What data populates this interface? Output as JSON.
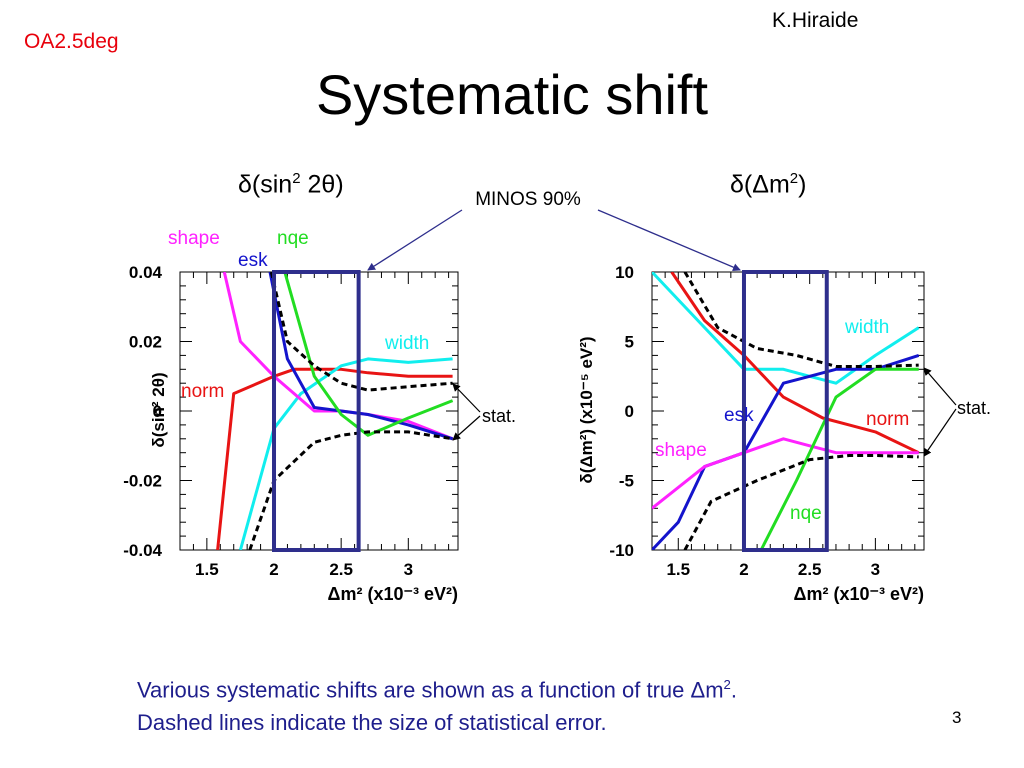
{
  "slide": {
    "tag": "OA2.5deg",
    "author": "K.Hiraide",
    "title": "Systematic shift",
    "left_heading": {
      "delta": "δ",
      "open": "(sin",
      "sup": "2",
      "close": " 2θ)"
    },
    "right_heading": {
      "delta": "δ",
      "open": "(Δm",
      "sup": "2",
      "close": ")"
    },
    "minos_label": "MINOS 90%",
    "caption_line1": "Various systematic shifts are shown as a function of true Δm",
    "caption_sup": "2",
    "caption_line1_end": ".",
    "caption_line2": "Dashed lines indicate the size of statistical error.",
    "page_number": "3"
  },
  "colors": {
    "shape": "#ff22ff",
    "nqe": "#22dd22",
    "esk": "#1414cc",
    "width": "#11eeee",
    "norm": "#e81414",
    "stat": "#000000",
    "box": "#2e2e8c",
    "caption": "#1e1e8c",
    "tag": "#e8000b"
  },
  "chart_data": [
    {
      "type": "line",
      "id": "left",
      "ylabel": "δ(sin² 2θ)",
      "xlabel": "Δm² (x10⁻³ eV²)",
      "xlim": [
        1.3,
        3.37
      ],
      "ylim": [
        -0.04,
        0.04
      ],
      "xticks": [
        "1.5",
        "2",
        "2.5",
        "3"
      ],
      "xtick_values": [
        1.5,
        2,
        2.5,
        3
      ],
      "yticks": [
        "-0.04",
        "-0.02",
        "0",
        "0.02",
        "0.04"
      ],
      "ytick_values": [
        -0.04,
        -0.02,
        0,
        0.02,
        0.04
      ],
      "box_x": [
        2.0,
        2.63
      ],
      "series": [
        {
          "name": "norm",
          "color_key": "norm",
          "dashed": false,
          "points": [
            [
              1.58,
              -0.04
            ],
            [
              1.7,
              0.005
            ],
            [
              2.0,
              0.01
            ],
            [
              2.15,
              0.012
            ],
            [
              2.5,
              0.012
            ],
            [
              2.7,
              0.011
            ],
            [
              3.0,
              0.01
            ],
            [
              3.33,
              0.01
            ]
          ]
        },
        {
          "name": "width",
          "color_key": "width",
          "dashed": false,
          "points": [
            [
              1.75,
              -0.04
            ],
            [
              2.0,
              -0.005
            ],
            [
              2.2,
              0.005
            ],
            [
              2.5,
              0.013
            ],
            [
              2.7,
              0.015
            ],
            [
              3.0,
              0.014
            ],
            [
              3.33,
              0.015
            ]
          ]
        },
        {
          "name": "shape",
          "color_key": "shape",
          "dashed": false,
          "points": [
            [
              1.63,
              0.04
            ],
            [
              1.75,
              0.02
            ],
            [
              2.0,
              0.01
            ],
            [
              2.3,
              0.0
            ],
            [
              2.5,
              0.0
            ],
            [
              2.7,
              -0.001
            ],
            [
              3.0,
              -0.003
            ],
            [
              3.33,
              -0.008
            ]
          ]
        },
        {
          "name": "esk",
          "color_key": "esk",
          "dashed": false,
          "points": [
            [
              1.97,
              0.04
            ],
            [
              2.1,
              0.015
            ],
            [
              2.3,
              0.001
            ],
            [
              2.5,
              0.0
            ],
            [
              2.7,
              -0.001
            ],
            [
              3.0,
              -0.004
            ],
            [
              3.33,
              -0.008
            ]
          ]
        },
        {
          "name": "nqe",
          "color_key": "nqe",
          "dashed": false,
          "points": [
            [
              2.08,
              0.04
            ],
            [
              2.3,
              0.01
            ],
            [
              2.5,
              -0.001
            ],
            [
              2.7,
              -0.007
            ],
            [
              3.0,
              -0.002
            ],
            [
              3.33,
              0.003
            ]
          ]
        },
        {
          "name": "stat+",
          "color_key": "stat",
          "dashed": true,
          "points": [
            [
              1.98,
              0.04
            ],
            [
              2.1,
              0.02
            ],
            [
              2.3,
              0.013
            ],
            [
              2.5,
              0.008
            ],
            [
              2.7,
              0.006
            ],
            [
              3.0,
              0.007
            ],
            [
              3.33,
              0.008
            ]
          ]
        },
        {
          "name": "stat-",
          "color_key": "stat",
          "dashed": true,
          "points": [
            [
              1.82,
              -0.04
            ],
            [
              2.0,
              -0.02
            ],
            [
              2.3,
              -0.009
            ],
            [
              2.5,
              -0.007
            ],
            [
              2.7,
              -0.006
            ],
            [
              3.0,
              -0.006
            ],
            [
              3.33,
              -0.008
            ]
          ]
        }
      ],
      "labels": [
        {
          "text": "shape",
          "color_key": "shape"
        },
        {
          "text": "nqe",
          "color_key": "nqe"
        },
        {
          "text": "esk",
          "color_key": "esk"
        },
        {
          "text": "width",
          "color_key": "width"
        },
        {
          "text": "norm",
          "color_key": "norm"
        },
        {
          "text": "stat.",
          "color_key": "stat"
        }
      ]
    },
    {
      "type": "line",
      "id": "right",
      "ylabel": "δ(Δm²) (x10⁻⁵ eV²)",
      "xlabel": "Δm² (x10⁻³ eV²)",
      "xlim": [
        1.3,
        3.37
      ],
      "ylim": [
        -10,
        10
      ],
      "xticks": [
        "1.5",
        "2",
        "2.5",
        "3"
      ],
      "xtick_values": [
        1.5,
        2,
        2.5,
        3
      ],
      "yticks": [
        "-10",
        "-5",
        "0",
        "5",
        "10"
      ],
      "ytick_values": [
        -10,
        -5,
        0,
        5,
        10
      ],
      "box_x": [
        2.0,
        2.63
      ],
      "series": [
        {
          "name": "width",
          "color_key": "width",
          "dashed": false,
          "points": [
            [
              1.3,
              10
            ],
            [
              1.7,
              6
            ],
            [
              2.0,
              3
            ],
            [
              2.3,
              3
            ],
            [
              2.5,
              2.5
            ],
            [
              2.7,
              2
            ],
            [
              3.0,
              4
            ],
            [
              3.33,
              6
            ]
          ]
        },
        {
          "name": "norm",
          "color_key": "norm",
          "dashed": false,
          "points": [
            [
              1.45,
              10
            ],
            [
              1.7,
              6.5
            ],
            [
              2.0,
              4
            ],
            [
              2.3,
              1
            ],
            [
              2.6,
              -0.5
            ],
            [
              2.8,
              -1
            ],
            [
              3.0,
              -1.5
            ],
            [
              3.33,
              -3
            ]
          ]
        },
        {
          "name": "esk",
          "color_key": "esk",
          "dashed": false,
          "points": [
            [
              1.3,
              -10
            ],
            [
              1.5,
              -8
            ],
            [
              1.7,
              -4
            ],
            [
              2.0,
              -3
            ],
            [
              2.3,
              2
            ],
            [
              2.5,
              2.5
            ],
            [
              2.7,
              3
            ],
            [
              3.0,
              3
            ],
            [
              3.33,
              4
            ]
          ]
        },
        {
          "name": "shape",
          "color_key": "shape",
          "dashed": false,
          "points": [
            [
              1.3,
              -7
            ],
            [
              1.7,
              -4
            ],
            [
              2.0,
              -3
            ],
            [
              2.3,
              -2
            ],
            [
              2.5,
              -2.5
            ],
            [
              2.7,
              -3
            ],
            [
              3.0,
              -3
            ],
            [
              3.33,
              -3
            ]
          ]
        },
        {
          "name": "nqe",
          "color_key": "nqe",
          "dashed": false,
          "points": [
            [
              2.13,
              -10
            ],
            [
              2.4,
              -5
            ],
            [
              2.7,
              1
            ],
            [
              3.0,
              3
            ],
            [
              3.33,
              3
            ]
          ]
        },
        {
          "name": "stat+",
          "color_key": "stat",
          "dashed": true,
          "points": [
            [
              1.55,
              10
            ],
            [
              1.8,
              6
            ],
            [
              2.1,
              4.5
            ],
            [
              2.4,
              4
            ],
            [
              2.7,
              3.2
            ],
            [
              3.0,
              3.2
            ],
            [
              3.33,
              3.3
            ]
          ]
        },
        {
          "name": "stat-",
          "color_key": "stat",
          "dashed": true,
          "points": [
            [
              1.55,
              -10
            ],
            [
              1.75,
              -6.5
            ],
            [
              2.1,
              -5
            ],
            [
              2.5,
              -3.5
            ],
            [
              2.8,
              -3.2
            ],
            [
              3.0,
              -3.2
            ],
            [
              3.33,
              -3.3
            ]
          ]
        }
      ],
      "labels": [
        {
          "text": "width",
          "color_key": "width"
        },
        {
          "text": "esk",
          "color_key": "esk"
        },
        {
          "text": "norm",
          "color_key": "norm"
        },
        {
          "text": "shape",
          "color_key": "shape"
        },
        {
          "text": "nqe",
          "color_key": "nqe"
        },
        {
          "text": "stat.",
          "color_key": "stat"
        }
      ]
    }
  ]
}
